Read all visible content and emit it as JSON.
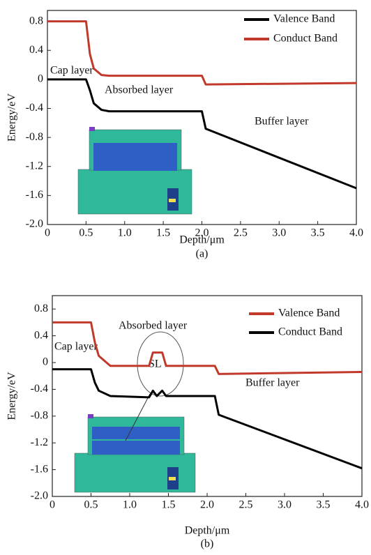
{
  "chart_data": [
    {
      "type": "line",
      "xlabel": "Depth/μm",
      "ylabel": "Energy/eV",
      "caption": "(a)",
      "annotations": [
        "Cap layer",
        "Absorbed layer",
        "Buffer layer"
      ],
      "x": [
        0,
        0.5,
        0.55,
        0.6,
        0.7,
        0.8,
        2.0,
        2.05,
        4.0
      ],
      "series": [
        {
          "name": "Valence Band",
          "color": "#000000",
          "values": [
            0,
            0,
            -0.15,
            -0.33,
            -0.42,
            -0.44,
            -0.44,
            -0.68,
            -1.5
          ]
        },
        {
          "name": "Conduct Band",
          "color": "#c0392b",
          "values": [
            0.8,
            0.8,
            0.35,
            0.15,
            0.06,
            0.05,
            0.05,
            -0.07,
            -0.05
          ]
        }
      ],
      "xlim": [
        0,
        4
      ],
      "ylim": [
        -2.0,
        0.95
      ],
      "xticks": [
        0,
        0.5,
        {
          "value": 1,
          "label": "1.0"
        },
        1.5,
        {
          "value": 2,
          "label": "2.0"
        },
        2.5,
        {
          "value": 3,
          "label": "3.0"
        },
        3.5,
        {
          "value": 4,
          "label": "4.0"
        }
      ],
      "yticks": [
        {
          "value": -2,
          "label": "-2.0"
        },
        -1.6,
        -1.2,
        -0.8,
        -0.4,
        0,
        0.4,
        0.8
      ],
      "legend": "upper right"
    },
    {
      "type": "line",
      "xlabel": "Depth/μm",
      "ylabel": "Energy/eV",
      "caption": "(b)",
      "annotations": [
        "Cap layer",
        "Absorbed layer",
        "SL",
        "Buffer layer"
      ],
      "x": [
        0,
        0.5,
        0.55,
        0.6,
        0.75,
        1.25,
        1.3,
        1.35,
        1.42,
        1.47,
        2.1,
        2.15,
        4.0
      ],
      "series": [
        {
          "name": "Valence Band",
          "color": "#c0392b",
          "values": [
            0.6,
            0.6,
            0.3,
            0.1,
            -0.05,
            -0.05,
            0.15,
            0.15,
            0.15,
            -0.05,
            -0.05,
            -0.17,
            -0.14
          ]
        },
        {
          "name": "Conduct Band",
          "color": "#000000",
          "values": [
            -0.1,
            -0.1,
            -0.3,
            -0.42,
            -0.5,
            -0.52,
            -0.42,
            -0.5,
            -0.42,
            -0.5,
            -0.5,
            -0.78,
            -1.58
          ]
        }
      ],
      "xlim": [
        0,
        4
      ],
      "ylim": [
        -2.0,
        1.0
      ],
      "xticks": [
        0,
        0.5,
        {
          "value": 1,
          "label": "1.0"
        },
        1.5,
        {
          "value": 2,
          "label": "2.0"
        },
        2.5,
        {
          "value": 3,
          "label": "3.0"
        },
        3.5,
        {
          "value": 4,
          "label": "4.0"
        }
      ],
      "yticks": [
        {
          "value": -2,
          "label": "-2.0"
        },
        -1.6,
        -1.2,
        -0.8,
        -0.4,
        0,
        0.4,
        0.8
      ],
      "legend": "upper right"
    }
  ]
}
